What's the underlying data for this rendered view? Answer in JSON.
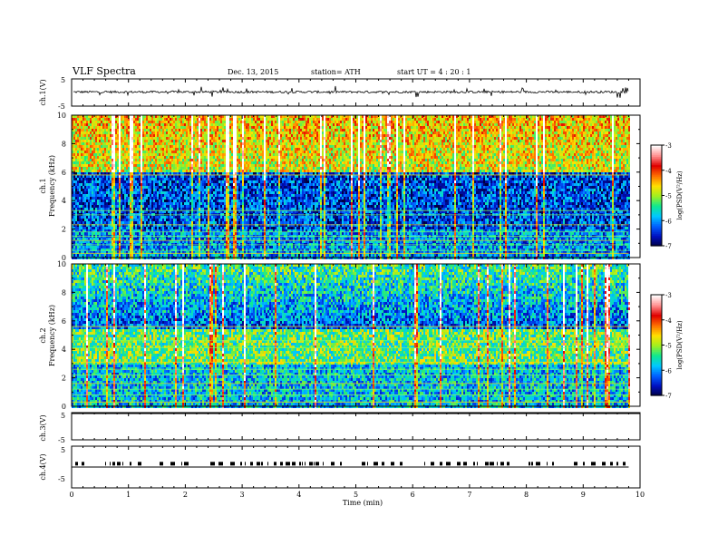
{
  "header": {
    "title": "VLF  Spectra",
    "date": "Dec. 13,  2015",
    "station": "station= ATH",
    "start": "start  UT  =    4   : 20 : 1"
  },
  "chart_data": [
    {
      "type": "line",
      "panel": "ch1-waveform",
      "ylabel": "ch.1(V)",
      "yticks": [
        "5",
        "-5"
      ],
      "ylim": [
        -5,
        5
      ],
      "signal_level": 0.2,
      "noise_amplitude": 0.8,
      "grid": false
    },
    {
      "type": "heatmap",
      "panel": "ch1-spectrogram",
      "ylabel": [
        "ch.1",
        "Frequency  (kHz)"
      ],
      "ylim": [
        0,
        10
      ],
      "yticks": [
        "0",
        "2",
        "4",
        "6",
        "8",
        "10"
      ],
      "colorbar": {
        "label": "log(PSD(V²/Hz)",
        "ticks": [
          "-3",
          "-4",
          "-5",
          "-6",
          "-7"
        ],
        "range": [
          -7,
          -3
        ],
        "colors": [
          "#000040",
          "#0010c0",
          "#0060ff",
          "#00c8ff",
          "#10e890",
          "#a0f020",
          "#ffe000",
          "#ff7000",
          "#e00000",
          "#ff9090",
          "#ffffff"
        ]
      }
    },
    {
      "type": "heatmap",
      "panel": "ch2-spectrogram",
      "ylabel": [
        "ch.2",
        "Frequency  (kHz)"
      ],
      "ylim": [
        0,
        10
      ],
      "yticks": [
        "0",
        "2",
        "4",
        "6",
        "8",
        "10"
      ],
      "colorbar": {
        "label": "log(PSD(V²/Hz)",
        "ticks": [
          "-3",
          "-4",
          "-5",
          "-6",
          "-7"
        ],
        "range": [
          -7,
          -3
        ]
      }
    },
    {
      "type": "line",
      "panel": "ch3-waveform",
      "ylabel": "ch.3(V)",
      "yticks": [
        "5",
        "-5"
      ],
      "ylim": [
        -5,
        5
      ],
      "signal_level": 5
    },
    {
      "type": "line",
      "panel": "ch4-waveform",
      "ylabel": "ch.4(V)",
      "yticks": [
        "5",
        "-5"
      ],
      "ylim": [
        -5,
        5
      ],
      "signal_level": 0,
      "marker_level": 0.8
    }
  ],
  "xaxis": {
    "label": "Time  (min)",
    "range": [
      0,
      10
    ],
    "data_end": 9.8,
    "ticks": [
      "0",
      "1",
      "2",
      "3",
      "4",
      "5",
      "6",
      "7",
      "8",
      "9",
      "10"
    ]
  }
}
